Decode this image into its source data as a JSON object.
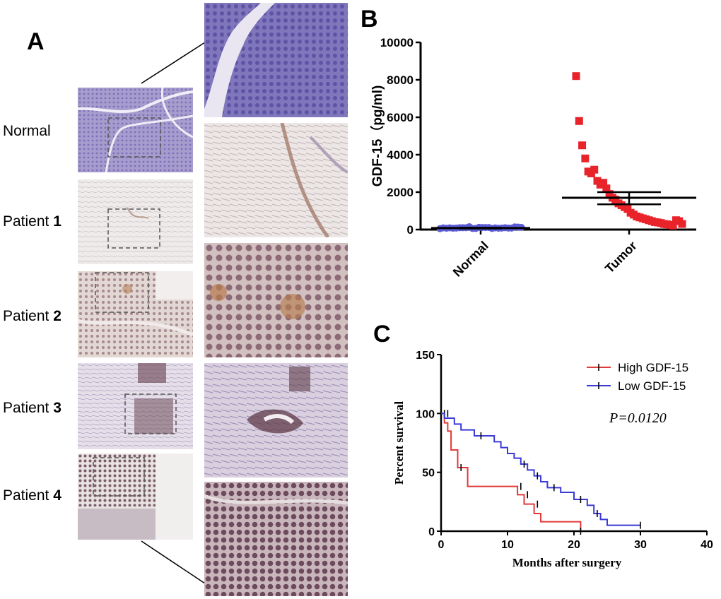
{
  "panel_a": {
    "letter": "A",
    "rows": [
      {
        "label": "Normal",
        "num": ""
      },
      {
        "label": "Patient ",
        "num": "1"
      },
      {
        "label": "Patient ",
        "num": "2"
      },
      {
        "label": "Patient ",
        "num": "3"
      },
      {
        "label": "Patient ",
        "num": "4"
      }
    ]
  },
  "chart_data": [
    {
      "type": "scatter",
      "panel": "B",
      "ylabel": "GDF-15（pg/ml)",
      "xlabel": "",
      "categories": [
        "Normal",
        "Tumor"
      ],
      "ylim": [
        0,
        10000
      ],
      "yticks": [
        0,
        2000,
        4000,
        6000,
        8000,
        10000
      ],
      "series": [
        {
          "category": "Normal",
          "color": "#5b5bd6",
          "marker": "circle",
          "values": [
            50,
            60,
            80,
            100,
            70,
            90,
            110,
            120,
            60,
            80,
            100,
            90,
            70,
            110,
            130,
            150,
            100,
            80,
            60,
            90,
            120,
            140,
            100,
            80,
            70,
            110
          ],
          "mean": 80,
          "sem": [
            55,
            100
          ]
        },
        {
          "category": "Tumor",
          "color": "#e8232a",
          "marker": "square",
          "values": [
            8200,
            5800,
            4500,
            3800,
            3100,
            3000,
            3200,
            2600,
            2400,
            2500,
            2200,
            1900,
            1700,
            1600,
            1400,
            1300,
            1200,
            1100,
            900,
            800,
            700,
            650,
            600,
            550,
            500,
            450,
            400,
            380,
            350,
            300,
            280,
            250,
            220,
            500,
            450,
            300
          ],
          "mean": 1700,
          "sem": [
            1350,
            2000
          ]
        }
      ]
    },
    {
      "type": "line",
      "panel": "C",
      "xlabel": "Months after surgery",
      "ylabel": "Percent survival",
      "xlim": [
        0,
        40
      ],
      "ylim": [
        0,
        150
      ],
      "xticks": [
        0,
        10,
        20,
        30,
        40
      ],
      "yticks": [
        0,
        50,
        100,
        150
      ],
      "annotation": "P=0.0120",
      "legend_position": "top-right",
      "series": [
        {
          "name": "High GDF-15",
          "color": "#e23a3a",
          "steps": [
            [
              0,
              100
            ],
            [
              0.5,
              92
            ],
            [
              1,
              85
            ],
            [
              1.5,
              69
            ],
            [
              2.5,
              54
            ],
            [
              4,
              38
            ],
            [
              11.5,
              31
            ],
            [
              12.5,
              23
            ],
            [
              14,
              15
            ],
            [
              15,
              8
            ],
            [
              21,
              0
            ]
          ],
          "censored": [
            [
              0.5,
              100
            ],
            [
              3,
              54
            ],
            [
              12,
              38
            ],
            [
              13,
              31
            ],
            [
              14.5,
              23
            ],
            [
              21,
              0
            ]
          ]
        },
        {
          "name": "Low  GDF-15",
          "color": "#3a3ad6",
          "steps": [
            [
              0,
              100
            ],
            [
              0.5,
              96
            ],
            [
              2,
              91
            ],
            [
              3,
              86
            ],
            [
              5,
              81
            ],
            [
              8,
              76
            ],
            [
              9,
              71
            ],
            [
              10,
              66
            ],
            [
              11,
              62
            ],
            [
              12,
              57
            ],
            [
              13,
              52
            ],
            [
              14,
              47
            ],
            [
              15,
              42
            ],
            [
              16,
              37
            ],
            [
              18,
              33
            ],
            [
              20,
              27
            ],
            [
              22,
              22
            ],
            [
              23,
              15
            ],
            [
              24,
              10
            ],
            [
              25,
              5
            ],
            [
              30,
              5
            ]
          ],
          "censored": [
            [
              1,
              100
            ],
            [
              6,
              81
            ],
            [
              12.5,
              57
            ],
            [
              14.5,
              47
            ],
            [
              17,
              37
            ],
            [
              21,
              27
            ],
            [
              23.5,
              15
            ],
            [
              30,
              5
            ]
          ]
        }
      ]
    }
  ],
  "panel_b_letter": "B",
  "panel_c_letter": "C"
}
